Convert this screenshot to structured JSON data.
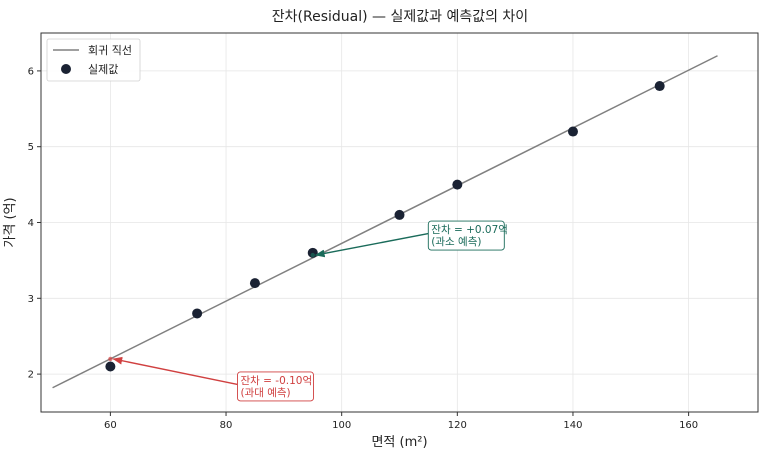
{
  "chart_data": {
    "type": "scatter",
    "title": "잔차(Residual) — 실제값과 예측값의 차이",
    "xlabel": "면적 (m²)",
    "ylabel": "가격 (억)",
    "xlim": [
      48,
      172
    ],
    "ylim": [
      1.5,
      6.5
    ],
    "xticks": [
      60,
      80,
      100,
      120,
      140,
      160
    ],
    "yticks": [
      2,
      3,
      4,
      5,
      6
    ],
    "grid": true,
    "legend_position": "top-left",
    "series": [
      {
        "name": "회귀 직선",
        "kind": "line",
        "color": "#808080",
        "x": [
          50,
          165
        ],
        "y": [
          1.82,
          6.2
        ]
      },
      {
        "name": "실제값",
        "kind": "scatter",
        "color": "#1a2233",
        "x": [
          60,
          75,
          85,
          95,
          110,
          120,
          140,
          155
        ],
        "y": [
          2.1,
          2.8,
          3.2,
          3.6,
          4.1,
          4.5,
          5.2,
          5.8
        ]
      }
    ],
    "annotations": [
      {
        "lines": [
          "잔차 = -0.10억",
          "(과대 예측)"
        ],
        "color": "#d04040",
        "point": {
          "x": 60,
          "y": 2.2
        },
        "text_at": {
          "x": 82.5,
          "y": 1.87
        }
      },
      {
        "lines": [
          "잔차 = +0.07억",
          "(과소 예측)"
        ],
        "color": "#1a6b5a",
        "point": {
          "x": 95,
          "y": 3.57
        },
        "text_at": {
          "x": 115.5,
          "y": 3.86
        }
      }
    ]
  }
}
